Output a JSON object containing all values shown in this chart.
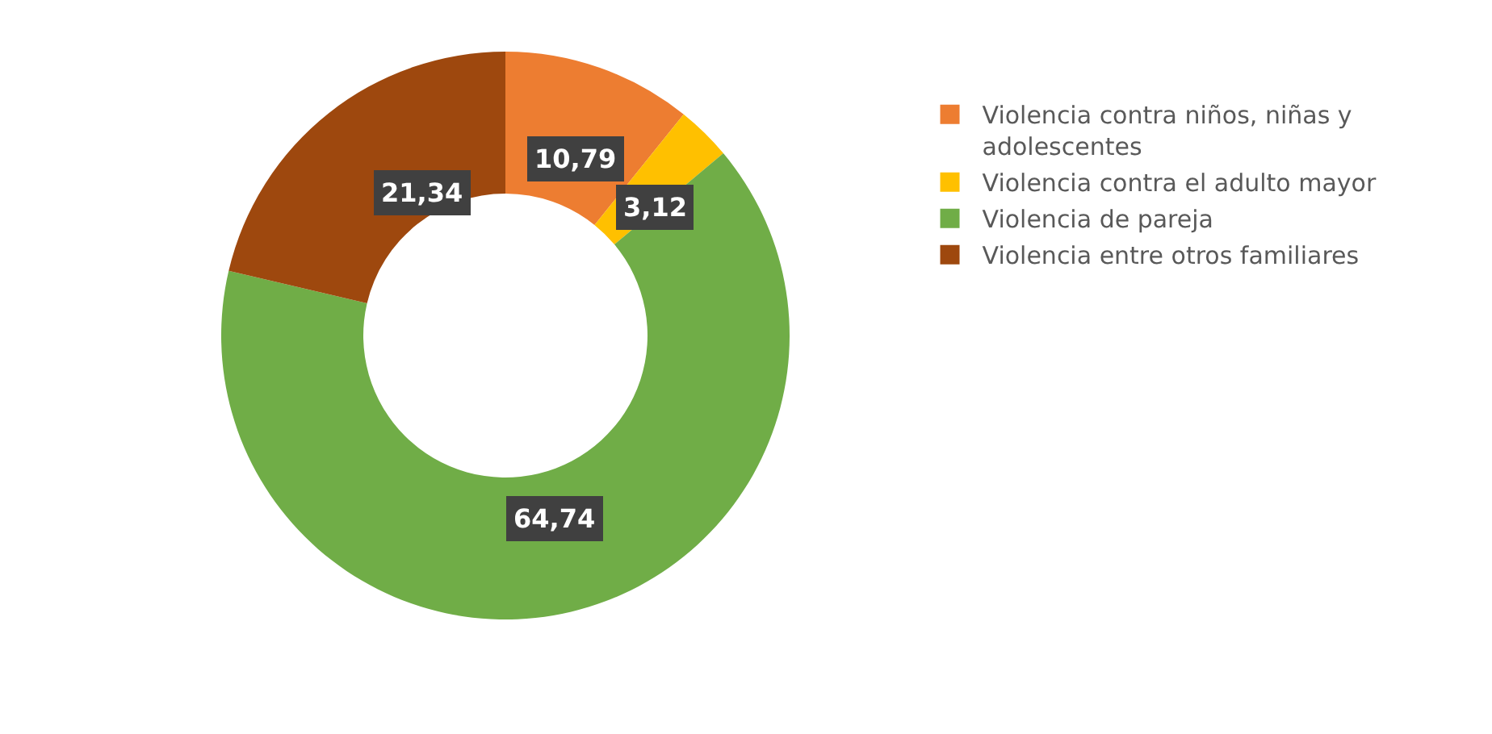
{
  "chart_data": {
    "type": "donut",
    "categories": [
      "Violencia contra niños, niñas y adolescentes",
      "Violencia contra el adulto mayor",
      "Violencia de pareja",
      "Violencia entre otros familiares"
    ],
    "values": [
      10.79,
      3.12,
      64.74,
      21.34
    ],
    "colors": [
      "#ed7d31",
      "#ffc000",
      "#70ad47",
      "#9e480e"
    ],
    "value_labels": [
      "10,79",
      "3,12",
      "64,74",
      "21,34"
    ],
    "legend": "right"
  }
}
